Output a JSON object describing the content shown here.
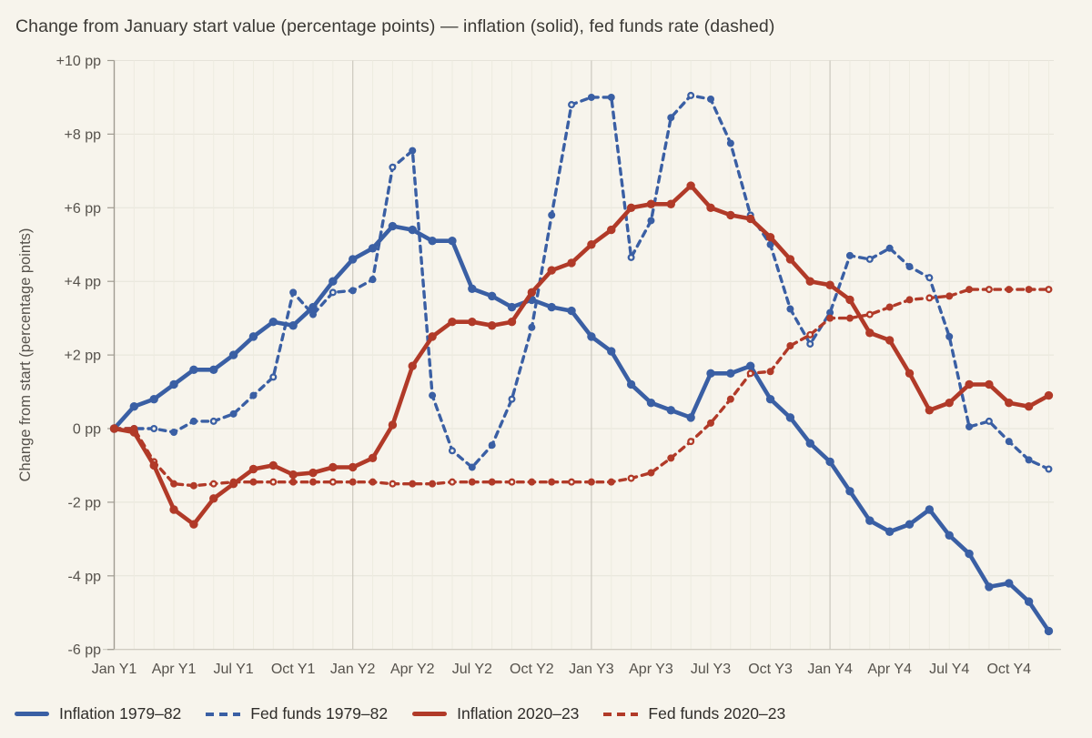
{
  "title": "Change from January start value (percentage points) — inflation (solid), fed funds rate (dashed)",
  "colors": {
    "background": "#f7f4ec",
    "blue_series": "#3a5fa4",
    "red_series": "#b13a28",
    "gridline_minor": "#edebe0",
    "gridline_major": "#cbc8be",
    "axis": "#a09c92",
    "tick_text": "#56524c",
    "title_text": "#3b3935"
  },
  "y_axis": {
    "label": "Change from start (percentage points)",
    "tick_labels": [
      "+10 pp",
      "+8 pp",
      "+6 pp",
      "+4 pp",
      "+2 pp",
      "0 pp",
      "-2 pp",
      "-4 pp",
      "-6 pp"
    ],
    "tick_values": [
      10,
      8,
      6,
      4,
      2,
      0,
      -2,
      -4,
      -6
    ]
  },
  "x_axis": {
    "tick_labels": [
      "Jan Y1",
      "Apr Y1",
      "Jul Y1",
      "Oct Y1",
      "Jan Y2",
      "Apr Y2",
      "Jul Y2",
      "Oct Y2",
      "Jan Y3",
      "Apr Y3",
      "Jul Y3",
      "Oct Y3",
      "Jan Y4",
      "Apr Y4",
      "Jul Y4",
      "Oct Y4"
    ],
    "tick_months": [
      0,
      3,
      6,
      9,
      12,
      15,
      18,
      21,
      24,
      27,
      30,
      33,
      36,
      39,
      42,
      45
    ]
  },
  "legend": [
    {
      "label": "Inflation 1979–82",
      "style": "solid",
      "color": "#3a5fa4"
    },
    {
      "label": "Fed funds 1979–82",
      "style": "dashed",
      "color": "#3a5fa4"
    },
    {
      "label": "Inflation 2020–23",
      "style": "solid",
      "color": "#b13a28"
    },
    {
      "label": "Fed funds 2020–23",
      "style": "dashed",
      "color": "#b13a28"
    }
  ],
  "chart_data": {
    "type": "line",
    "title": "Change from January start value (percentage points) — inflation (solid), fed funds rate (dashed)",
    "xlabel": "",
    "ylabel": "Change from start (percentage points)",
    "ylim": [
      -6,
      10
    ],
    "x_unit": "months since January of Y1 (0–47), labeled quarterly",
    "grid": true,
    "legend_position": "bottom",
    "series": [
      {
        "name": "Inflation 1979–82",
        "color": "#3a5fa4",
        "style": "solid",
        "values": [
          0,
          0.6,
          0.8,
          1.2,
          1.6,
          1.6,
          2.0,
          2.5,
          2.9,
          2.8,
          3.3,
          4.0,
          4.6,
          4.9,
          5.5,
          5.4,
          5.1,
          5.1,
          3.8,
          3.6,
          3.3,
          3.5,
          3.3,
          3.2,
          2.5,
          2.1,
          1.2,
          0.7,
          0.5,
          0.3,
          1.5,
          1.5,
          1.7,
          0.8,
          0.3,
          -0.4,
          -0.9,
          -1.7,
          -2.5,
          -2.8,
          -2.6,
          -2.2,
          -2.9,
          -3.4,
          -4.3,
          -4.2,
          -4.7,
          -5.5
        ]
      },
      {
        "name": "Fed funds 1979–82",
        "color": "#3a5fa4",
        "style": "dashed",
        "values": [
          0,
          0.0,
          0.0,
          -0.1,
          0.2,
          0.2,
          0.4,
          0.9,
          1.4,
          3.7,
          3.1,
          3.7,
          3.75,
          4.05,
          7.1,
          7.55,
          0.9,
          -0.6,
          -1.05,
          -0.45,
          0.8,
          2.75,
          5.8,
          8.8,
          9.0,
          9.0,
          4.65,
          5.65,
          8.45,
          9.05,
          8.95,
          7.75,
          5.8,
          5.0,
          3.25,
          2.3,
          3.15,
          4.7,
          4.6,
          4.9,
          4.4,
          4.1,
          2.5,
          0.05,
          0.2,
          -0.35,
          -0.85,
          -1.1
        ]
      },
      {
        "name": "Inflation 2020–23",
        "color": "#b13a28",
        "style": "solid",
        "values": [
          0,
          -0.1,
          -1.0,
          -2.2,
          -2.6,
          -1.9,
          -1.5,
          -1.1,
          -1.0,
          -1.25,
          -1.2,
          -1.05,
          -1.05,
          -0.8,
          0.1,
          1.7,
          2.5,
          2.9,
          2.9,
          2.8,
          2.9,
          3.7,
          4.3,
          4.5,
          5.0,
          5.4,
          6.0,
          6.1,
          6.1,
          6.6,
          6.0,
          5.8,
          5.7,
          5.2,
          4.6,
          4.0,
          3.9,
          3.5,
          2.6,
          2.4,
          1.5,
          0.5,
          0.7,
          1.2,
          1.2,
          0.7,
          0.6,
          0.9
        ]
      },
      {
        "name": "Fed funds 2020–23",
        "color": "#b13a28",
        "style": "dashed",
        "values": [
          0,
          0.0,
          -0.9,
          -1.5,
          -1.55,
          -1.5,
          -1.45,
          -1.45,
          -1.45,
          -1.45,
          -1.45,
          -1.45,
          -1.45,
          -1.45,
          -1.5,
          -1.5,
          -1.5,
          -1.45,
          -1.45,
          -1.45,
          -1.45,
          -1.45,
          -1.45,
          -1.45,
          -1.45,
          -1.45,
          -1.35,
          -1.2,
          -0.8,
          -0.35,
          0.15,
          0.8,
          1.5,
          1.55,
          2.25,
          2.55,
          3.0,
          3.0,
          3.1,
          3.3,
          3.5,
          3.55,
          3.6,
          3.78,
          3.78,
          3.78,
          3.78,
          3.78
        ]
      }
    ]
  }
}
